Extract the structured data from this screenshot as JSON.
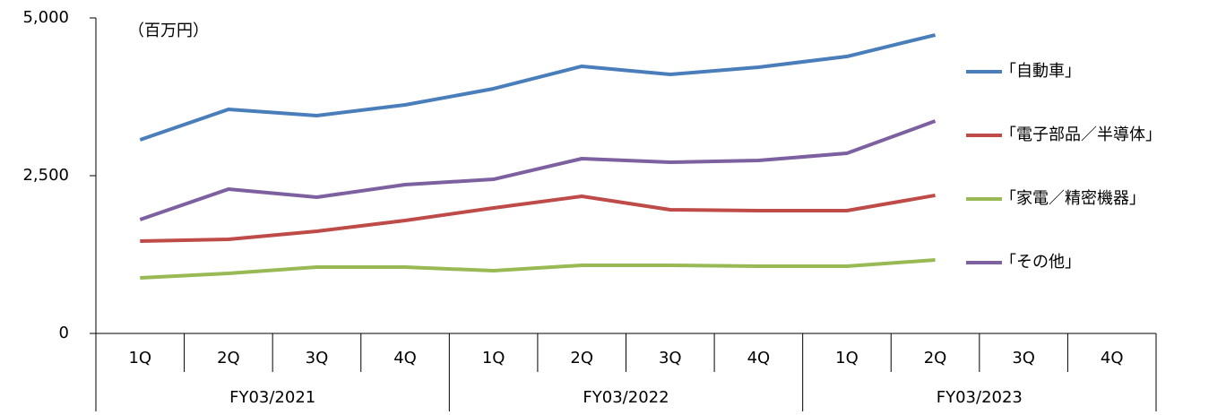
{
  "chart_data": {
    "type": "line",
    "unit_label": "（百万円）",
    "categories": [
      "1Q",
      "2Q",
      "3Q",
      "4Q",
      "1Q",
      "2Q",
      "3Q",
      "4Q",
      "1Q",
      "2Q",
      "3Q",
      "4Q"
    ],
    "groups": [
      "FY03/2021",
      "FY03/2022",
      "FY03/2023"
    ],
    "series": [
      {
        "name": "「自動車」",
        "color": "#4a7ebb",
        "values": [
          3068,
          3551,
          3452,
          3622,
          3878,
          4233,
          4105,
          4219,
          4389,
          4730,
          null,
          null
        ]
      },
      {
        "name": "「電子部品／半導体」",
        "color": "#be4b48",
        "values": [
          1463,
          1491,
          1619,
          1790,
          1989,
          2173,
          1960,
          1946,
          1946,
          2188,
          null,
          null
        ]
      },
      {
        "name": "「家電／精密機器」",
        "color": "#98b954",
        "values": [
          881,
          952,
          1051,
          1051,
          994,
          1080,
          1080,
          1065,
          1065,
          1165,
          null,
          null
        ]
      },
      {
        "name": "「その他」",
        "color": "#7d60a0",
        "values": [
          1804,
          2287,
          2159,
          2358,
          2443,
          2770,
          2713,
          2741,
          2855,
          3366,
          null,
          null
        ]
      }
    ],
    "ylim": [
      0,
      5000
    ],
    "yticks": [
      0,
      {
        "value": 2500,
        "label": "2,500"
      },
      {
        "value": 5000,
        "label": "5,000"
      }
    ],
    "grid": false
  }
}
